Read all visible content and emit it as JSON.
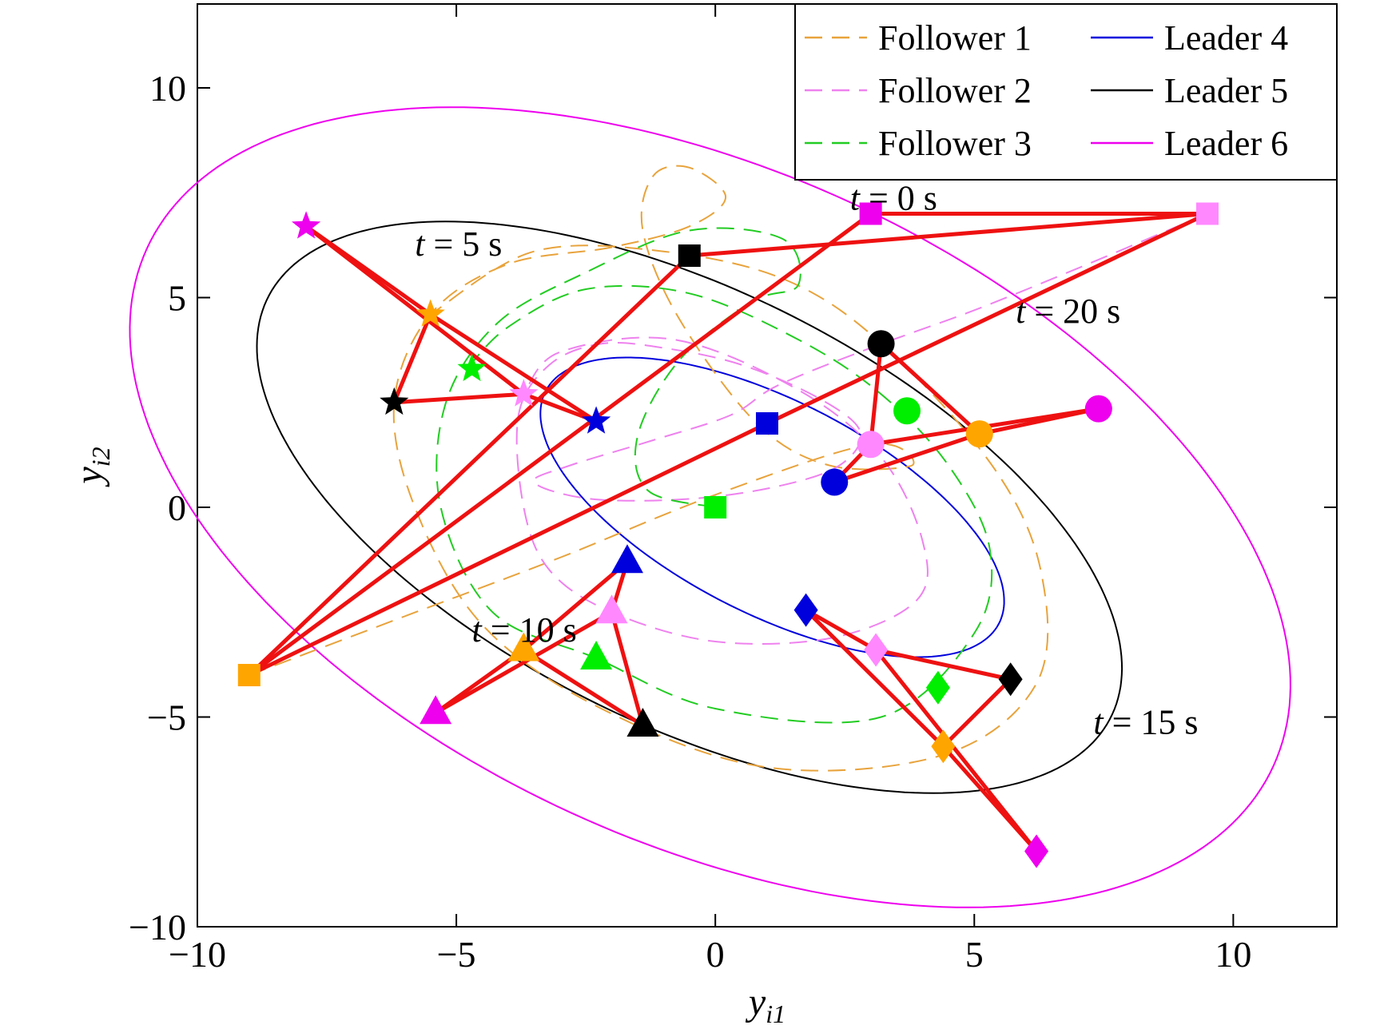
{
  "chart_data": {
    "type": "line",
    "xlabel": {
      "main": "y",
      "sub": "i1"
    },
    "ylabel": {
      "main": "y",
      "sub": "i2"
    },
    "xlim": [
      -10,
      12
    ],
    "ylim": [
      -10,
      12
    ],
    "xticks": [
      -10,
      -5,
      0,
      5,
      10
    ],
    "yticks": [
      -10,
      -5,
      0,
      5,
      10
    ],
    "xtick_labels": [
      "−10",
      "−5",
      "0",
      "5",
      "10"
    ],
    "ytick_labels": [
      "−10",
      "−5",
      "0",
      "5",
      "10"
    ],
    "grid": false,
    "legend_position": "top-right",
    "colors": {
      "follower1": "#e8a33c",
      "follower2": "#ee82ee",
      "follower3": "#22cc22",
      "leader4": "#0000dd",
      "leader5": "#000000",
      "leader6": "#ee00ee",
      "formation": "#ee1111"
    },
    "legend": [
      {
        "key": "f1",
        "label": "Follower 1",
        "color": "#e8a33c",
        "dashed": true
      },
      {
        "key": "f2",
        "label": "Follower 2",
        "color": "#ee82ee",
        "dashed": true
      },
      {
        "key": "f3",
        "label": "Follower 3",
        "color": "#22cc22",
        "dashed": true
      },
      {
        "key": "l4",
        "label": "Leader 4",
        "color": "#0000dd",
        "dashed": false
      },
      {
        "key": "l5",
        "label": "Leader 5",
        "color": "#000000",
        "dashed": false
      },
      {
        "key": "l6",
        "label": "Leader 6",
        "color": "#ee00ee",
        "dashed": false
      }
    ],
    "leader_orbits": [
      {
        "name": "Leader 4",
        "color": "#0000dd",
        "center": [
          1.1,
          0.0
        ],
        "radii": [
          5.2,
          2.4
        ],
        "angle_deg": -35
      },
      {
        "name": "Leader 5",
        "color": "#000000",
        "center": [
          -0.5,
          0.0
        ],
        "radii": [
          9.6,
          4.9
        ],
        "angle_deg": -35
      },
      {
        "name": "Leader 6",
        "color": "#ee00ee",
        "center": [
          -0.1,
          0.0
        ],
        "radii": [
          12.6,
          7.6
        ],
        "angle_deg": -35
      }
    ],
    "follower_trajectories": [
      {
        "name": "Follower 1",
        "color": "#e8a33c",
        "points": [
          [
            -9,
            -4
          ],
          [
            -6,
            -2.6
          ],
          [
            -3,
            -1.2
          ],
          [
            0,
            0.3
          ],
          [
            3,
            1.5
          ],
          [
            3.8,
            1.0
          ],
          [
            2.2,
            1.0
          ],
          [
            0.8,
            2.0
          ],
          [
            -0.7,
            4.5
          ],
          [
            -1.4,
            6.6
          ],
          [
            -1.2,
            7.9
          ],
          [
            -0.5,
            8.1
          ],
          [
            0.2,
            7.4
          ],
          [
            -0.5,
            6.7
          ],
          [
            -2,
            6.2
          ],
          [
            -4,
            5.8
          ],
          [
            -5.5,
            4.6
          ],
          [
            -6.2,
            2.5
          ],
          [
            -5.8,
            0
          ],
          [
            -4.5,
            -2.8
          ],
          [
            -2.2,
            -4.8
          ],
          [
            1,
            -6.2
          ],
          [
            4.4,
            -5.9
          ],
          [
            6.2,
            -4.2
          ],
          [
            6.3,
            -1.6
          ],
          [
            5.4,
            0.9
          ],
          [
            3.3,
            3.8
          ],
          [
            1.4,
            5.4
          ],
          [
            -1,
            6.1
          ],
          [
            -3.5,
            6.1
          ],
          [
            -5.5,
            4.6
          ]
        ]
      },
      {
        "name": "Follower 2",
        "color": "#ee82ee",
        "points": [
          [
            9.5,
            7
          ],
          [
            7,
            5.7
          ],
          [
            5,
            4.7
          ],
          [
            3,
            3.8
          ],
          [
            1.2,
            2.9
          ],
          [
            0.3,
            2.2
          ],
          [
            -1.2,
            1.6
          ],
          [
            -2.8,
            1.0
          ],
          [
            -3.5,
            0.6
          ],
          [
            -2.4,
            0.2
          ],
          [
            -0.5,
            0.2
          ],
          [
            1.2,
            0.5
          ],
          [
            2.4,
            1.0
          ],
          [
            2.8,
            1.8
          ],
          [
            2.0,
            2.6
          ],
          [
            0.5,
            3.4
          ],
          [
            -1,
            3.8
          ],
          [
            -2.2,
            3.9
          ],
          [
            -3.2,
            3.4
          ],
          [
            -3.8,
            2.2
          ],
          [
            -3.7,
            0
          ],
          [
            -3.2,
            -1.5
          ],
          [
            -2,
            -2.5
          ],
          [
            0,
            -3.2
          ],
          [
            2.3,
            -3.1
          ],
          [
            3.9,
            -2.2
          ],
          [
            4.0,
            -0.8
          ],
          [
            3.2,
            1.2
          ],
          [
            1.6,
            2.8
          ],
          [
            -0.8,
            4.0
          ],
          [
            -3.0,
            3.7
          ],
          [
            -3.7,
            2.7
          ]
        ]
      },
      {
        "name": "Follower 3",
        "color": "#22cc22",
        "points": [
          [
            0,
            0
          ],
          [
            -1.3,
            0.4
          ],
          [
            -1.5,
            1.7
          ],
          [
            -0.7,
            3.5
          ],
          [
            0.7,
            4.9
          ],
          [
            1.6,
            5.3
          ],
          [
            1.3,
            6.4
          ],
          [
            -0.5,
            6.6
          ],
          [
            -2.5,
            5.6
          ],
          [
            -4.2,
            4.4
          ],
          [
            -5.2,
            2.5
          ],
          [
            -5.3,
            0
          ],
          [
            -4.3,
            -2.5
          ],
          [
            -2.3,
            -3.6
          ],
          [
            0,
            -4.8
          ],
          [
            3.2,
            -5.0
          ],
          [
            5.0,
            -3.0
          ],
          [
            5.3,
            -1.0
          ],
          [
            4.5,
            1.0
          ],
          [
            3.2,
            2.7
          ],
          [
            1.6,
            4.0
          ],
          [
            -0.5,
            5.1
          ],
          [
            -2.5,
            5.2
          ],
          [
            -4.0,
            4.3
          ],
          [
            -4.8,
            3.3
          ]
        ]
      }
    ],
    "agents": [
      {
        "name": "Leader 4",
        "color": "#0000dd",
        "positions": [
          [
            1.0,
            2.0
          ],
          [
            -2.3,
            2.05
          ],
          [
            -1.7,
            -1.3
          ],
          [
            1.75,
            -2.45
          ],
          [
            2.3,
            0.6
          ]
        ]
      },
      {
        "name": "Leader 5",
        "color": "#000000",
        "positions": [
          [
            -0.5,
            6.0
          ],
          [
            -6.2,
            2.5
          ],
          [
            -1.4,
            -5.2
          ],
          [
            5.7,
            -4.1
          ],
          [
            3.2,
            3.9
          ]
        ]
      },
      {
        "name": "Leader 6",
        "color": "#ee00ee",
        "positions": [
          [
            3.0,
            7.0
          ],
          [
            -7.9,
            6.7
          ],
          [
            -5.4,
            -4.9
          ],
          [
            6.2,
            -8.2
          ],
          [
            7.4,
            2.35
          ]
        ]
      },
      {
        "name": "Follower 1",
        "color": "#ffa500",
        "positions": [
          [
            -9.0,
            -4.0
          ],
          [
            -5.5,
            4.6
          ],
          [
            -3.7,
            -3.4
          ],
          [
            4.4,
            -5.7
          ],
          [
            5.1,
            1.75
          ]
        ]
      },
      {
        "name": "Follower 2",
        "color": "#ff88ff",
        "positions": [
          [
            9.5,
            7.0
          ],
          [
            -3.7,
            2.7
          ],
          [
            -2.0,
            -2.5
          ],
          [
            3.1,
            -3.4
          ],
          [
            3.0,
            1.5
          ]
        ]
      },
      {
        "name": "Follower 3",
        "color": "#00ee00",
        "positions": [
          [
            0.0,
            0.0
          ],
          [
            -4.7,
            3.3
          ],
          [
            -2.3,
            -3.6
          ],
          [
            4.3,
            -4.3
          ],
          [
            3.7,
            2.3
          ]
        ]
      }
    ],
    "time_labels": [
      "t = 0 s",
      "t = 5 s",
      "t = 10 s",
      "t = 15 s",
      "t = 20 s"
    ],
    "markers": [
      "square",
      "star",
      "triangle",
      "diamond",
      "circle"
    ],
    "annotations": [
      {
        "t": "t",
        "rest": " = 0 s",
        "pos": [
          2.6,
          7.1
        ]
      },
      {
        "t": "t",
        "rest": " = 5 s",
        "pos": [
          -5.8,
          6.0
        ]
      },
      {
        "t": "t",
        "rest": " = 20 s",
        "pos": [
          5.8,
          4.4
        ]
      },
      {
        "t": "t",
        "rest": " = 10 s",
        "pos": [
          -4.7,
          -3.2
        ]
      },
      {
        "t": "t",
        "rest": " = 15 s",
        "pos": [
          7.3,
          -5.4
        ]
      }
    ],
    "formation_edges": [
      [
        0,
        3
      ],
      [
        1,
        3
      ],
      [
        0,
        4
      ],
      [
        1,
        4
      ],
      [
        2,
        3
      ],
      [
        2,
        4
      ]
    ]
  }
}
